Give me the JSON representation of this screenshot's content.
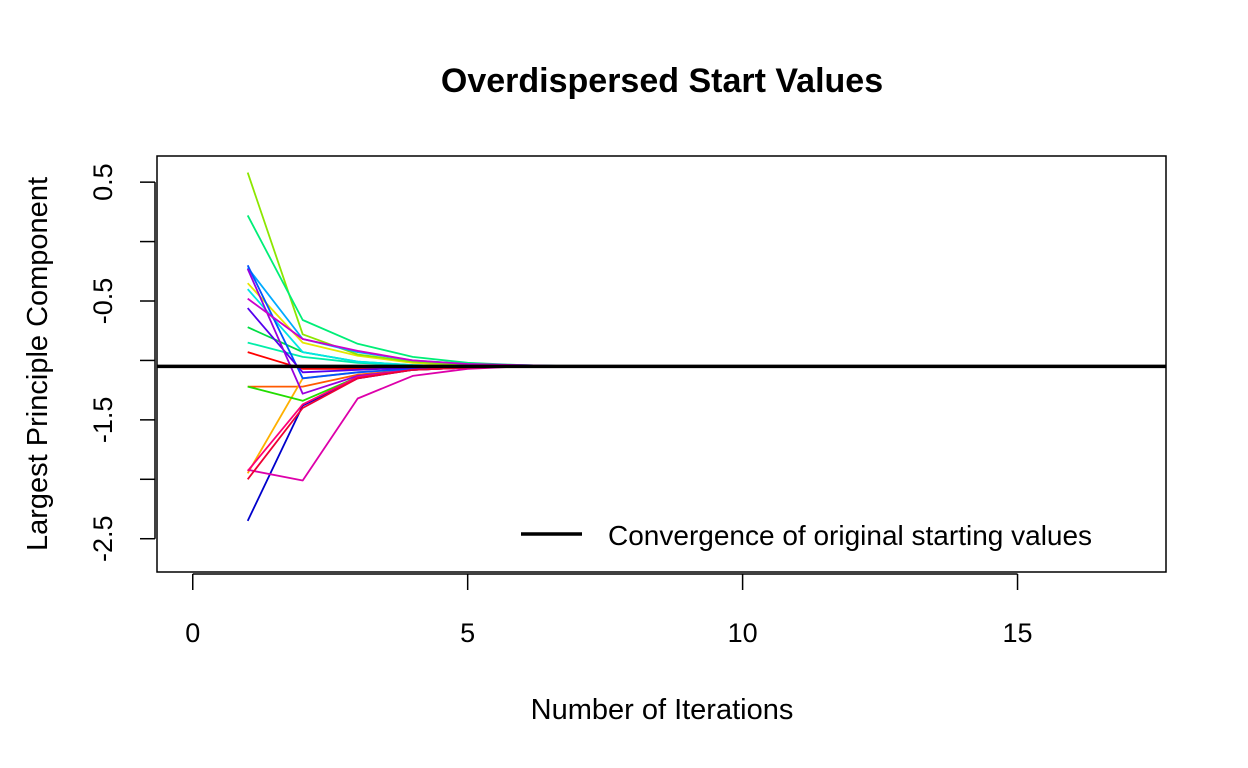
{
  "chart_data": {
    "type": "line",
    "title": "Overdispersed Start Values",
    "xlabel": "Number of Iterations",
    "ylabel": "Largest Principle Component",
    "xlim": [
      -0.65,
      17.7
    ],
    "ylim": [
      -2.78,
      0.72
    ],
    "x_ticks": [
      0,
      5,
      10,
      15
    ],
    "x_tick_labels": [
      "0",
      "5",
      "10",
      "15"
    ],
    "y_ticks": [
      0.5,
      0,
      -0.5,
      -1,
      -1.5,
      -2,
      -2.5
    ],
    "y_tick_labels": [
      "0.5",
      "",
      "-0.5",
      "",
      "-1.5",
      "",
      "-2.5"
    ],
    "grid": false,
    "legend": {
      "position": "bottom-right",
      "entries": [
        {
          "label": "Convergence of original starting values",
          "color": "#000000"
        }
      ]
    },
    "hline": {
      "y": -1.05,
      "color": "#000000"
    },
    "x": [
      1,
      2,
      3,
      4,
      5,
      6,
      7
    ],
    "series": [
      {
        "color": "#ff0000",
        "values": [
          -0.93,
          -1.07,
          -1.07,
          -1.06,
          -1.05,
          -1.05,
          -1.05
        ]
      },
      {
        "color": "#ff5a00",
        "values": [
          -1.22,
          -1.22,
          -1.12,
          -1.08,
          -1.06,
          -1.05,
          -1.05
        ]
      },
      {
        "color": "#ffb000",
        "values": [
          -1.95,
          -1.15,
          -1.1,
          -1.07,
          -1.06,
          -1.05,
          -1.05
        ]
      },
      {
        "color": "#e6e600",
        "values": [
          -0.35,
          -0.85,
          -0.96,
          -1.02,
          -1.04,
          -1.05,
          -1.05
        ]
      },
      {
        "color": "#8ce600",
        "values": [
          0.58,
          -0.78,
          -0.95,
          -1.01,
          -1.04,
          -1.05,
          -1.05
        ]
      },
      {
        "color": "#22dd00",
        "values": [
          -1.22,
          -1.34,
          -1.14,
          -1.08,
          -1.06,
          -1.05,
          -1.05
        ]
      },
      {
        "color": "#00dd44",
        "values": [
          -0.72,
          -0.93,
          -1.01,
          -1.04,
          -1.05,
          -1.05,
          -1.05
        ]
      },
      {
        "color": "#00ee77",
        "values": [
          0.22,
          -0.66,
          -0.86,
          -0.97,
          -1.02,
          -1.04,
          -1.05
        ]
      },
      {
        "color": "#00eeaa",
        "values": [
          -0.85,
          -0.97,
          -1.02,
          -1.04,
          -1.05,
          -1.05,
          -1.05
        ]
      },
      {
        "color": "#00e6e6",
        "values": [
          -0.4,
          -0.93,
          -1.01,
          -1.04,
          -1.05,
          -1.05,
          -1.05
        ]
      },
      {
        "color": "#00aaff",
        "values": [
          -0.22,
          -0.82,
          -0.93,
          -1.0,
          -1.03,
          -1.04,
          -1.05
        ]
      },
      {
        "color": "#0055ff",
        "values": [
          -0.2,
          -1.15,
          -1.1,
          -1.07,
          -1.06,
          -1.05,
          -1.05
        ]
      },
      {
        "color": "#0000cc",
        "values": [
          -2.35,
          -1.38,
          -1.15,
          -1.08,
          -1.06,
          -1.05,
          -1.05
        ]
      },
      {
        "color": "#5500ee",
        "values": [
          -0.56,
          -1.1,
          -1.08,
          -1.06,
          -1.05,
          -1.05,
          -1.05
        ]
      },
      {
        "color": "#9900dd",
        "values": [
          -0.23,
          -1.28,
          -1.13,
          -1.08,
          -1.06,
          -1.05,
          -1.05
        ]
      },
      {
        "color": "#cc00cc",
        "values": [
          -0.48,
          -0.82,
          -0.92,
          -1.0,
          -1.03,
          -1.04,
          -1.05
        ]
      },
      {
        "color": "#dd00aa",
        "values": [
          -1.92,
          -2.01,
          -1.32,
          -1.13,
          -1.07,
          -1.05,
          -1.05
        ]
      },
      {
        "color": "#ff0077",
        "values": [
          -1.93,
          -1.37,
          -1.14,
          -1.08,
          -1.06,
          -1.05,
          -1.05
        ]
      },
      {
        "color": "#ee0033",
        "values": [
          -2.0,
          -1.4,
          -1.15,
          -1.08,
          -1.06,
          -1.05,
          -1.05
        ]
      }
    ]
  }
}
